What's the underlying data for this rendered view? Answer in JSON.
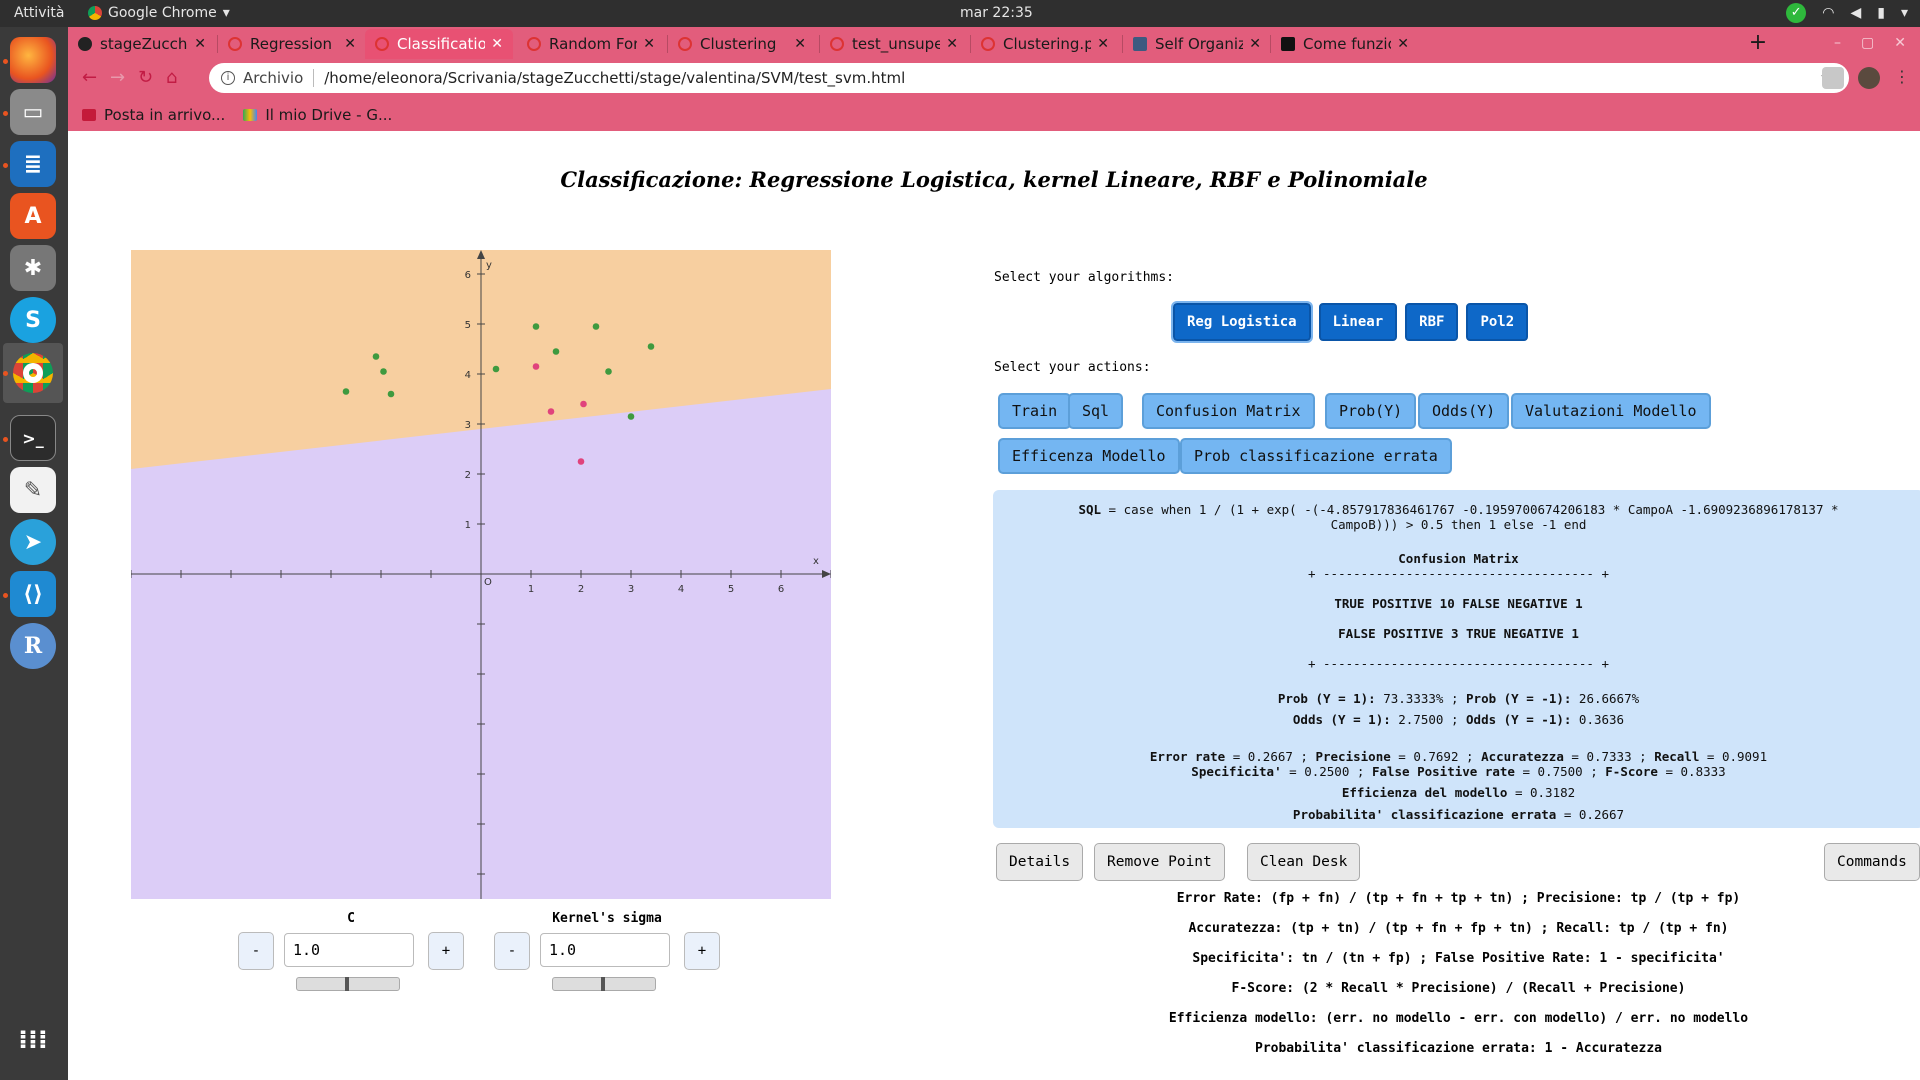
{
  "system": {
    "activities": "Attività",
    "app_name": "Google Chrome",
    "clock": "mar 22:35"
  },
  "dock": {
    "items": [
      "firefox-icon",
      "files-icon",
      "writer-icon",
      "software-icon",
      "settings-icon",
      "skype-icon",
      "chrome-icon",
      "terminal-icon",
      "text-editor-icon",
      "telegram-icon",
      "vscode-icon",
      "r-icon",
      "apps-grid-icon"
    ]
  },
  "browser": {
    "tabs": [
      {
        "label": "stageZucchetti/st",
        "icon": "github-icon"
      },
      {
        "label": "Regression",
        "icon": "page-icon"
      },
      {
        "label": "Classification",
        "icon": "page-icon"
      },
      {
        "label": "Random Forest",
        "icon": "page-icon"
      },
      {
        "label": "Clustering",
        "icon": "page-icon"
      },
      {
        "label": "test_unsuper.htm",
        "icon": "page-icon"
      },
      {
        "label": "Clustering.pdf",
        "icon": "page-icon"
      },
      {
        "label": "Self Organizing M",
        "icon": "page-icon"
      },
      {
        "label": "Come funziona ur",
        "icon": "page-icon"
      }
    ],
    "selected_tab": 2,
    "address": {
      "prefix": "Archivio",
      "url": "/home/eleonora/Scrivania/stageZucchetti/stage/valentina/SVM/test_svm.html"
    },
    "bookmarks": [
      "Posta in arrivo...",
      "Il mio Drive - G..."
    ],
    "accent": "#e25d7c"
  },
  "page": {
    "title": "Classificazione: Regressione Logistica, kernel Lineare, RBF e Polinomiale",
    "select_algorithms": "Select your algorithms:",
    "algorithms": [
      "Reg Logistica",
      "Linear",
      "RBF",
      "Pol2"
    ],
    "select_actions": "Select your actions:",
    "actions": [
      "Train",
      "Sql",
      "Confusion Matrix",
      "Prob(Y)",
      "Odds(Y)",
      "Valutazioni Modello",
      "Efficenza Modello",
      "Prob classificazione errata"
    ],
    "result": {
      "sql_label": "SQL",
      "sql_text": "= case when 1 / (1 + exp( -(-4.857917836461767 -0.1959700674206183 * CampoA -1.6909236896178137 *",
      "sql_text2": "CampoB))) > 0.5 then 1 else -1 end",
      "cm_title": "Confusion Matrix",
      "cm_border": "+ ------------------------------------ +",
      "cm_row1": "TRUE POSITIVE 10 FALSE NEGATIVE 1",
      "cm_row2": "FALSE POSITIVE 3 TRUE NEGATIVE 1",
      "prob_line": {
        "a_label": "Prob (Y = 1):",
        "a_val": "73.3333% ;",
        "b_label": "Prob (Y = -1):",
        "b_val": "26.6667%"
      },
      "odds_line": {
        "a_label": "Odds (Y = 1):",
        "a_val": "2.7500 ;",
        "b_label": "Odds (Y = -1):",
        "b_val": "0.3636"
      },
      "eval1": {
        "l1": "Error rate",
        "v1": "= 0.2667 ;",
        "l2": "Precisione",
        "v2": "= 0.7692 ;",
        "l3": "Accuratezza",
        "v3": "= 0.7333 ;",
        "l4": "Recall",
        "v4": "= 0.9091"
      },
      "eval2": {
        "l1": "Specificita'",
        "v1": "= 0.2500 ;",
        "l2": "False Positive rate",
        "v2": "= 0.7500 ;",
        "l3": "F-Score",
        "v3": "= 0.8333"
      },
      "eff": {
        "l": "Efficienza del modello",
        "v": "= 0.3182"
      },
      "perr": {
        "l": "Probabilita' classificazione errata",
        "v": "= 0.2667"
      }
    },
    "bottom_buttons": [
      "Details",
      "Remove Point",
      "Clean Desk",
      "Commands"
    ],
    "formulas": [
      "Error Rate: (fp + fn) / (tp + fn + tp + tn) ; Precisione: tp / (tp + fp)",
      "Accuratezza: (tp + tn) / (tp + fn + fp + tn) ; Recall: tp / (tp + fn)",
      "Specificita': tn / (tn + fp) ; False Positive Rate: 1 - specificita'",
      "F-Score: (2 * Recall * Precisione) / (Recall + Precisione)",
      "Efficienza modello: (err. no modello - err. con modello) / err. no modello",
      "Probabilita' classificazione errata: 1 - Accuratezza"
    ],
    "controls": {
      "c": {
        "label": "C",
        "minus": "-",
        "plus": "+",
        "value": "1.0",
        "slider": 0.5
      },
      "sigma": {
        "label": "Kernel's sigma",
        "minus": "-",
        "plus": "+",
        "value": "1.0",
        "slider": 0.5
      }
    },
    "colors": {
      "region_pos": "#f7cfa0",
      "region_neg": "#dccdf7",
      "point_pos": "#3f9a3f",
      "point_neg": "#e0437c",
      "algo_button": "#0e68c8",
      "action_button": "#74b6f2",
      "result_bg": "#cfe4fa"
    }
  },
  "chart_data": {
    "type": "scatter",
    "xlabel": "x",
    "ylabel": "y",
    "origin_label": "O",
    "xlim": [
      -7,
      7
    ],
    "ylim": [
      -6.5,
      6.5
    ],
    "x_ticks": [
      1,
      2,
      3,
      4,
      5,
      6
    ],
    "y_ticks": [
      1,
      2,
      3,
      4,
      5,
      6
    ],
    "boundary": {
      "x": [
        -7,
        7
      ],
      "y": [
        2.1,
        3.7
      ]
    },
    "series": [
      {
        "class": "positive",
        "points": [
          [
            -2.7,
            3.65
          ],
          [
            -2.1,
            4.35
          ],
          [
            -1.95,
            4.05
          ],
          [
            -1.8,
            3.6
          ],
          [
            0.3,
            4.1
          ],
          [
            1.1,
            4.95
          ],
          [
            1.5,
            4.45
          ],
          [
            2.3,
            4.95
          ],
          [
            2.55,
            4.05
          ],
          [
            3.0,
            3.15
          ],
          [
            3.4,
            4.55
          ]
        ]
      },
      {
        "class": "negative",
        "points": [
          [
            1.1,
            4.15
          ],
          [
            1.4,
            3.25
          ],
          [
            2.05,
            3.4
          ],
          [
            2.0,
            2.25
          ]
        ]
      }
    ]
  }
}
